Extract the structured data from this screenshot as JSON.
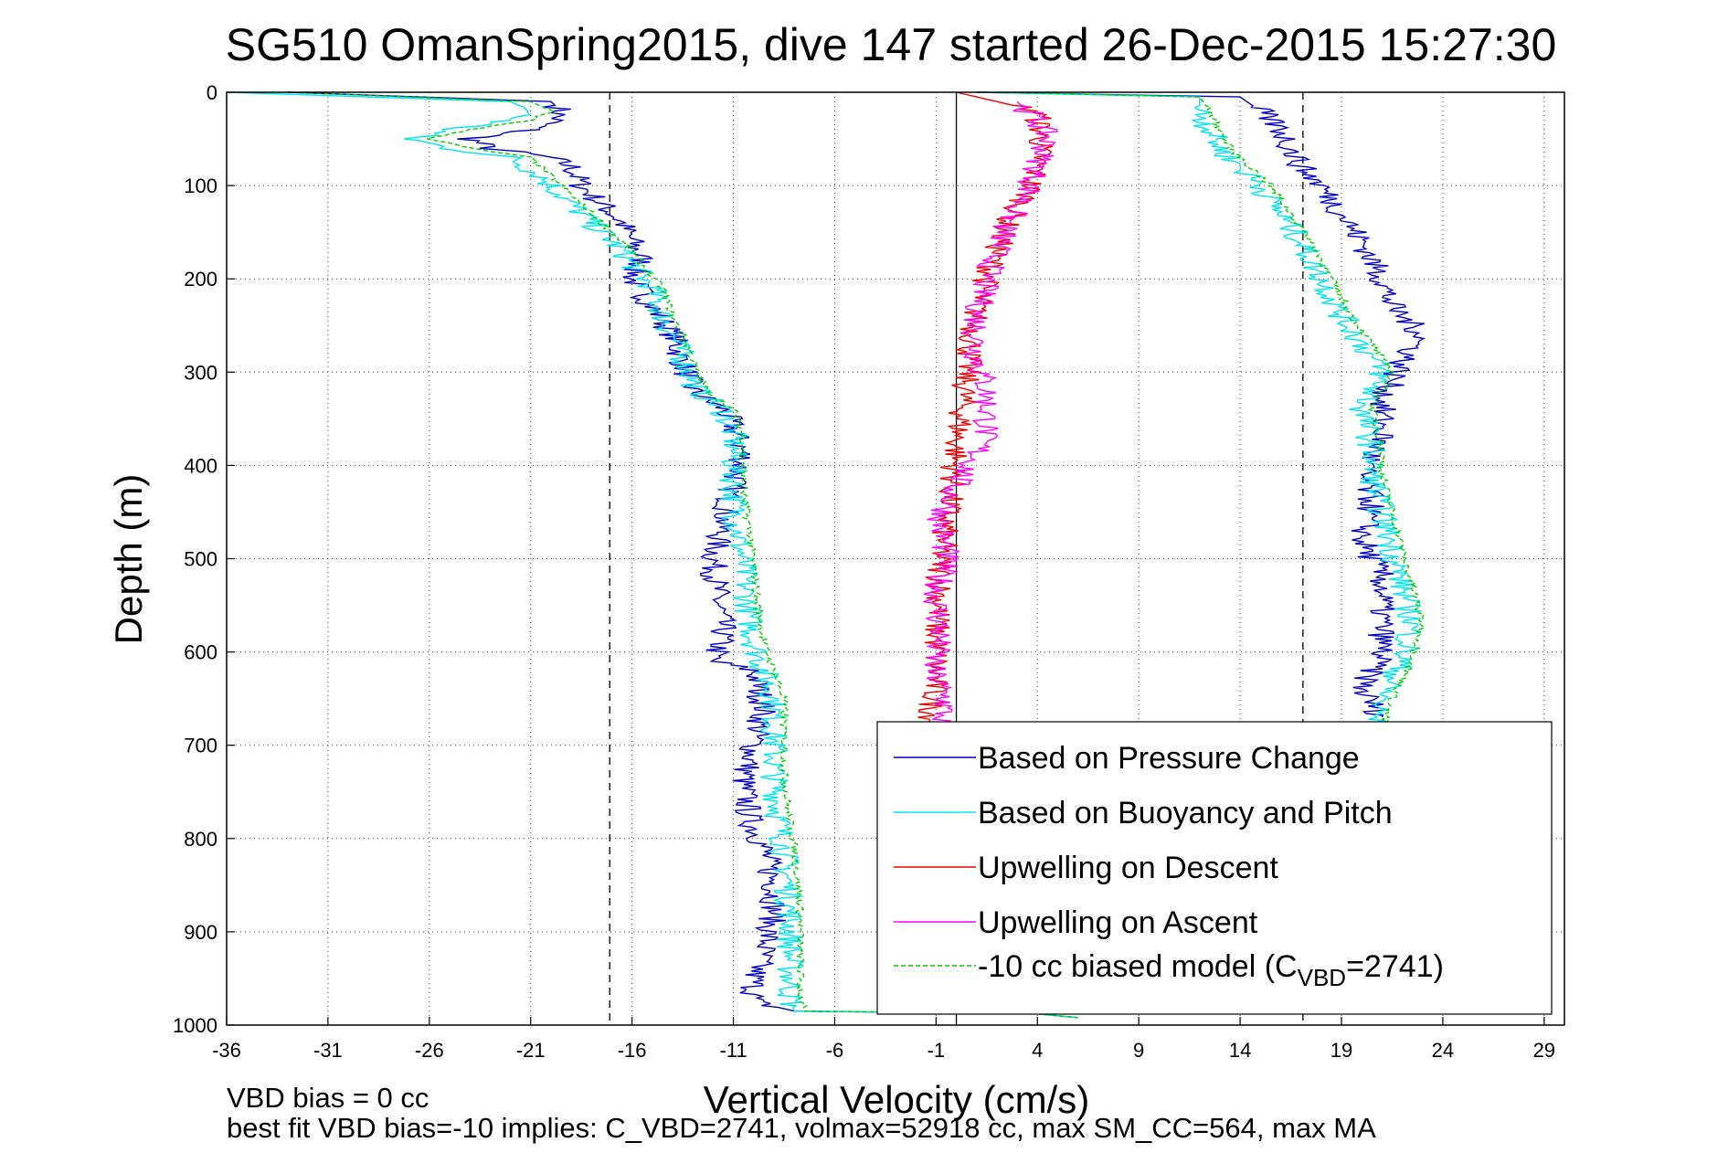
{
  "chart_data": {
    "type": "line",
    "title": "SG510 OmanSpring2015, dive 147 started 26-Dec-2015 15:27:30",
    "xlabel": "Vertical Velocity (cm/s)",
    "ylabel": "Depth (m)",
    "xlim": [
      -36,
      30
    ],
    "ylim": [
      1000,
      0
    ],
    "y_reversed": true,
    "x_ticks": [
      -36,
      -31,
      -26,
      -21,
      -16,
      -11,
      -6,
      -1,
      4,
      9,
      14,
      19,
      24,
      29
    ],
    "y_ticks": [
      0,
      100,
      200,
      300,
      400,
      500,
      600,
      700,
      800,
      900,
      1000
    ],
    "grid": true,
    "vertical_reference_lines": [
      {
        "x": -17.1,
        "style": "dashed"
      },
      {
        "x": 17.1,
        "style": "dashed"
      },
      {
        "x": 0,
        "style": "solid"
      }
    ],
    "legend_position": "lower-right",
    "series": [
      {
        "name": "Based on Pressure Change",
        "color": "#0000cc",
        "style": "solid",
        "points": [
          [
            -33,
            0
          ],
          [
            -20,
            10
          ],
          [
            -19.5,
            20
          ],
          [
            -19.8,
            30
          ],
          [
            -21,
            40
          ],
          [
            -24,
            50
          ],
          [
            -23,
            60
          ],
          [
            -20,
            70
          ],
          [
            -19,
            80
          ],
          [
            -18.5,
            100
          ],
          [
            -17.5,
            120
          ],
          [
            -16.5,
            140
          ],
          [
            -16,
            160
          ],
          [
            -15.5,
            180
          ],
          [
            -16,
            200
          ],
          [
            -15,
            230
          ],
          [
            -14,
            260
          ],
          [
            -13.5,
            290
          ],
          [
            -13,
            320
          ],
          [
            -11.5,
            340
          ],
          [
            -11,
            360
          ],
          [
            -10.5,
            390
          ],
          [
            -11,
            420
          ],
          [
            -11.5,
            460
          ],
          [
            -12,
            500
          ],
          [
            -11.8,
            540
          ],
          [
            -11.5,
            580
          ],
          [
            -12,
            610
          ],
          [
            -10,
            620
          ],
          [
            -9.5,
            660
          ],
          [
            -10,
            700
          ],
          [
            -10.5,
            740
          ],
          [
            -10.2,
            780
          ],
          [
            -9.5,
            810
          ],
          [
            -9,
            850
          ],
          [
            -9,
            880
          ],
          [
            -9.5,
            920
          ],
          [
            -10,
            950
          ],
          [
            -10,
            975
          ],
          [
            -8,
            985
          ],
          [
            4,
            988
          ],
          [
            6,
            992
          ]
        ]
      },
      {
        "name": "Based on Buoyancy and Pitch",
        "color": "#00e5ee",
        "style": "solid",
        "points": [
          [
            -36,
            0
          ],
          [
            -22,
            10
          ],
          [
            -21,
            20
          ],
          [
            -22,
            30
          ],
          [
            -25,
            40
          ],
          [
            -27,
            50
          ],
          [
            -25,
            60
          ],
          [
            -22,
            70
          ],
          [
            -20.5,
            90
          ],
          [
            -19.5,
            110
          ],
          [
            -18.5,
            130
          ],
          [
            -17.5,
            150
          ],
          [
            -16.5,
            170
          ],
          [
            -15.8,
            190
          ],
          [
            -15,
            210
          ],
          [
            -14.5,
            240
          ],
          [
            -13.8,
            270
          ],
          [
            -13.2,
            300
          ],
          [
            -12.8,
            320
          ],
          [
            -11.5,
            340
          ],
          [
            -11,
            370
          ],
          [
            -11,
            400
          ],
          [
            -11,
            430
          ],
          [
            -10.8,
            470
          ],
          [
            -10.5,
            510
          ],
          [
            -10.3,
            550
          ],
          [
            -10,
            590
          ],
          [
            -9.5,
            620
          ],
          [
            -9,
            650
          ],
          [
            -9,
            690
          ],
          [
            -9,
            730
          ],
          [
            -8.8,
            770
          ],
          [
            -8.5,
            810
          ],
          [
            -8.3,
            850
          ],
          [
            -8.2,
            890
          ],
          [
            -8.2,
            930
          ],
          [
            -8.2,
            970
          ],
          [
            -8,
            985
          ],
          [
            4,
            988
          ],
          [
            6,
            992
          ]
        ]
      },
      {
        "name": "Upwelling on Descent",
        "color": "#ee0000",
        "style": "solid",
        "points": [
          [
            0,
            0
          ],
          [
            4,
            20
          ],
          [
            4.2,
            50
          ],
          [
            4,
            80
          ],
          [
            3.5,
            110
          ],
          [
            2.5,
            140
          ],
          [
            2,
            170
          ],
          [
            1.5,
            200
          ],
          [
            1,
            230
          ],
          [
            0.8,
            260
          ],
          [
            0.5,
            300
          ],
          [
            0.3,
            340
          ],
          [
            0,
            380
          ],
          [
            -0.2,
            420
          ],
          [
            -0.5,
            460
          ],
          [
            -0.8,
            500
          ],
          [
            -0.8,
            540
          ],
          [
            -1,
            580
          ],
          [
            -1,
            620
          ],
          [
            -1.2,
            660
          ],
          [
            -1.2,
            680
          ]
        ]
      },
      {
        "name": "Upwelling on Ascent",
        "color": "#ff00ff",
        "style": "solid",
        "points": [
          [
            3,
            10
          ],
          [
            4,
            30
          ],
          [
            4.5,
            50
          ],
          [
            4,
            80
          ],
          [
            3.5,
            110
          ],
          [
            2.5,
            140
          ],
          [
            2,
            170
          ],
          [
            1.5,
            200
          ],
          [
            1,
            240
          ],
          [
            1,
            280
          ],
          [
            1.5,
            320
          ],
          [
            1.5,
            360
          ],
          [
            1,
            390
          ],
          [
            0,
            420
          ],
          [
            -0.8,
            460
          ],
          [
            -0.5,
            500
          ],
          [
            -1,
            540
          ],
          [
            -0.8,
            580
          ],
          [
            -1.2,
            620
          ],
          [
            -0.5,
            650
          ],
          [
            -0.8,
            680
          ]
        ]
      },
      {
        "name": "-10 cc biased model (C_VBD=2741)",
        "color": "#00cc00",
        "style": "dashed",
        "points": [
          [
            -33,
            0
          ],
          [
            -21,
            10
          ],
          [
            -20,
            20
          ],
          [
            -21,
            30
          ],
          [
            -24,
            40
          ],
          [
            -26,
            50
          ],
          [
            -24,
            60
          ],
          [
            -21,
            70
          ],
          [
            -20,
            90
          ],
          [
            -19,
            110
          ],
          [
            -18,
            130
          ],
          [
            -17,
            150
          ],
          [
            -16,
            170
          ],
          [
            -15.3,
            190
          ],
          [
            -14.5,
            210
          ],
          [
            -14,
            240
          ],
          [
            -13.3,
            270
          ],
          [
            -12.8,
            300
          ],
          [
            -12.3,
            320
          ],
          [
            -11,
            340
          ],
          [
            -10.5,
            370
          ],
          [
            -10.5,
            400
          ],
          [
            -10.5,
            430
          ],
          [
            -10.2,
            470
          ],
          [
            -10,
            510
          ],
          [
            -9.8,
            550
          ],
          [
            -9.5,
            590
          ],
          [
            -9,
            620
          ],
          [
            -8.5,
            650
          ],
          [
            -8.5,
            690
          ],
          [
            -8.5,
            730
          ],
          [
            -8.3,
            770
          ],
          [
            -8,
            810
          ],
          [
            -7.8,
            850
          ],
          [
            -7.7,
            890
          ],
          [
            -7.7,
            930
          ],
          [
            -7.7,
            970
          ],
          [
            -7.5,
            985
          ],
          [
            4,
            988
          ],
          [
            6,
            992
          ]
        ]
      },
      {
        "name": "Based on Pressure Change (ascent)",
        "color": "#0000cc",
        "style": "solid",
        "points": [
          [
            1,
            0
          ],
          [
            14,
            5
          ],
          [
            15,
            20
          ],
          [
            16,
            40
          ],
          [
            16.5,
            60
          ],
          [
            17,
            80
          ],
          [
            18,
            100
          ],
          [
            19,
            130
          ],
          [
            20,
            160
          ],
          [
            21,
            200
          ],
          [
            21.5,
            230
          ],
          [
            23,
            260
          ],
          [
            22,
            290
          ],
          [
            21,
            330
          ],
          [
            21,
            370
          ],
          [
            20,
            410
          ],
          [
            20.5,
            440
          ],
          [
            20,
            480
          ],
          [
            21,
            520
          ],
          [
            21,
            560
          ],
          [
            21,
            600
          ],
          [
            20,
            640
          ],
          [
            21,
            670
          ]
        ]
      },
      {
        "name": "Based on Buoyancy and Pitch (ascent)",
        "color": "#00e5ee",
        "style": "solid",
        "points": [
          [
            1,
            0
          ],
          [
            12,
            5
          ],
          [
            12,
            20
          ],
          [
            12.5,
            40
          ],
          [
            13,
            60
          ],
          [
            14,
            80
          ],
          [
            15,
            100
          ],
          [
            16,
            130
          ],
          [
            17,
            160
          ],
          [
            18,
            200
          ],
          [
            19,
            240
          ],
          [
            20,
            270
          ],
          [
            21,
            300
          ],
          [
            20,
            340
          ],
          [
            20.5,
            380
          ],
          [
            20.5,
            410
          ],
          [
            21,
            450
          ],
          [
            21.5,
            490
          ],
          [
            22,
            530
          ],
          [
            22.5,
            570
          ],
          [
            22,
            610
          ],
          [
            21,
            650
          ],
          [
            20.5,
            680
          ]
        ]
      },
      {
        "name": "-10 cc biased model (ascent)",
        "color": "#00cc00",
        "style": "dashed",
        "points": [
          [
            2,
            0
          ],
          [
            12,
            5
          ],
          [
            12.5,
            20
          ],
          [
            13,
            40
          ],
          [
            13.5,
            60
          ],
          [
            14.5,
            80
          ],
          [
            15.5,
            100
          ],
          [
            16.5,
            130
          ],
          [
            17.5,
            160
          ],
          [
            18.5,
            200
          ],
          [
            19.5,
            240
          ],
          [
            20.5,
            270
          ],
          [
            21.5,
            300
          ],
          [
            20.5,
            340
          ],
          [
            21,
            380
          ],
          [
            21,
            410
          ],
          [
            21.5,
            450
          ],
          [
            22,
            490
          ],
          [
            22.5,
            530
          ],
          [
            23,
            570
          ],
          [
            22.5,
            610
          ],
          [
            21.5,
            650
          ],
          [
            21,
            680
          ]
        ]
      }
    ]
  },
  "legend": [
    {
      "text": "Based on Pressure Change",
      "color": "#0000cc",
      "style": "solid"
    },
    {
      "text": "Based on Buoyancy and Pitch",
      "color": "#00e5ee",
      "style": "solid"
    },
    {
      "text": "Upwelling on Descent",
      "color": "#ee0000",
      "style": "solid"
    },
    {
      "text": "Upwelling on Ascent",
      "color": "#ff00ff",
      "style": "solid"
    },
    {
      "text": "-10 cc biased model (C",
      "sub": "VBD",
      "tail": "=2741)",
      "color": "#00cc00",
      "style": "dashed"
    }
  ],
  "notes": {
    "line1": "VBD bias = 0 cc",
    "line2": "best fit VBD bias=-10 implies: C_VBD=2741, volmax=52918 cc, max SM_CC=564, max MA"
  }
}
